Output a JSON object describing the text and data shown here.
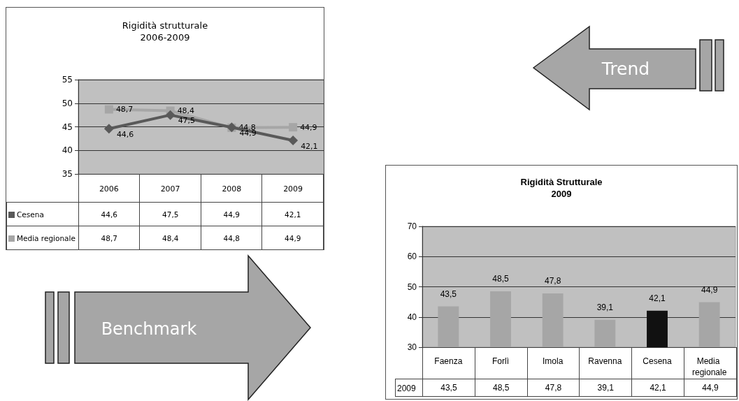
{
  "chart_data": [
    {
      "type": "line",
      "title": "Rigidità strutturale",
      "subtitle": "2006-2009",
      "categories": [
        "2006",
        "2007",
        "2008",
        "2009"
      ],
      "series": [
        {
          "name": "Cesena",
          "color": "#595959",
          "marker": "diamond",
          "values": [
            44.6,
            47.5,
            44.9,
            42.1
          ],
          "value_labels": [
            "44,6",
            "47,5",
            "44,9",
            "42,1"
          ]
        },
        {
          "name": "Media regionale",
          "color": "#a6a6a6",
          "marker": "square",
          "values": [
            48.7,
            48.4,
            44.8,
            44.9
          ],
          "value_labels": [
            "48,7",
            "48,4",
            "44,8",
            "44,9"
          ]
        }
      ],
      "ylim": [
        35,
        55
      ],
      "yticks": [
        35,
        40,
        45,
        50,
        55
      ],
      "grid": "y",
      "legend": "bottom left"
    },
    {
      "type": "bar",
      "title": "Rigidità Strutturale",
      "subtitle": "2009",
      "categories": [
        "Faenza",
        "Forlì",
        "Imola",
        "Ravenna",
        "Cesena",
        "Media regionale"
      ],
      "series": [
        {
          "name": "2009",
          "colors": [
            "#a6a6a6",
            "#a6a6a6",
            "#a6a6a6",
            "#a6a6a6",
            "#111111",
            "#a6a6a6"
          ],
          "values": [
            43.5,
            48.5,
            47.8,
            39.1,
            42.1,
            44.9
          ],
          "value_labels": [
            "43,5",
            "48,5",
            "47,8",
            "39,1",
            "42,1",
            "44,9"
          ]
        }
      ],
      "ylim": [
        30,
        70
      ],
      "yticks": [
        30,
        40,
        50,
        60,
        70
      ],
      "grid": "y"
    },
    {
      "type": "other",
      "annotations": [
        "Trend"
      ]
    },
    {
      "type": "other",
      "annotations": [
        "Benchmark"
      ]
    }
  ]
}
